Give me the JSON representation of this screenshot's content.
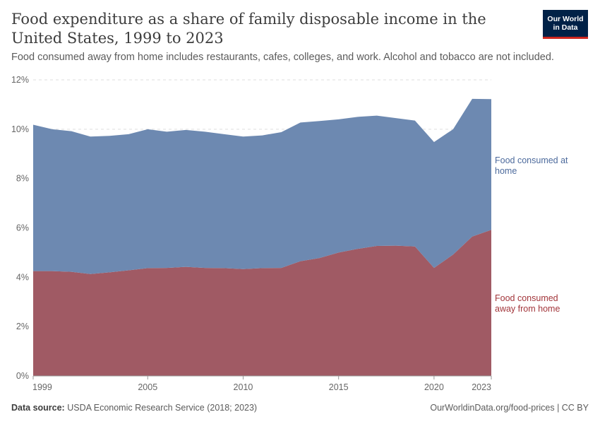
{
  "header": {
    "title": "Food expenditure as a share of family disposable income in the United States, 1999 to 2023",
    "subtitle": "Food consumed away from home includes restaurants, cafes, colleges, and work. Alcohol and tobacco are not included.",
    "logo_line1": "Our World",
    "logo_line2": "in Data"
  },
  "footer": {
    "source_label": "Data source:",
    "source_text": "USDA Economic Research Service (2018; 2023)",
    "url_text": "OurWorldinData.org/food-prices | CC BY"
  },
  "colors": {
    "at_home": "#6d89b1",
    "at_home_label": "#4c6a9c",
    "away": "#a05a64",
    "away_label": "#a2353a",
    "brand": "#002147",
    "brand_accent": "#ce261e"
  },
  "chart_data": {
    "type": "area",
    "stacked": true,
    "x": [
      1999,
      2000,
      2001,
      2002,
      2003,
      2004,
      2005,
      2006,
      2007,
      2008,
      2009,
      2010,
      2011,
      2012,
      2013,
      2014,
      2015,
      2016,
      2017,
      2018,
      2019,
      2020,
      2021,
      2022,
      2023
    ],
    "series": [
      {
        "name": "Food consumed away from home",
        "label": "Food consumed away from home",
        "color": "#a05a64",
        "values": [
          4.25,
          4.25,
          4.22,
          4.13,
          4.2,
          4.28,
          4.37,
          4.38,
          4.42,
          4.38,
          4.37,
          4.33,
          4.37,
          4.38,
          4.65,
          4.78,
          5.0,
          5.15,
          5.27,
          5.28,
          5.25,
          4.38,
          4.92,
          5.65,
          5.92
        ]
      },
      {
        "name": "Food consumed at home",
        "label": "Food consumed at home",
        "color": "#6d89b1",
        "values": [
          5.93,
          5.75,
          5.7,
          5.57,
          5.53,
          5.52,
          5.63,
          5.52,
          5.55,
          5.52,
          5.43,
          5.37,
          5.38,
          5.5,
          5.62,
          5.55,
          5.4,
          5.35,
          5.28,
          5.17,
          5.1,
          5.1,
          5.08,
          5.58,
          5.3
        ]
      }
    ],
    "x_ticks": [
      "1999",
      "2005",
      "2010",
      "2015",
      "2020",
      "2023"
    ],
    "y_ticks": [
      "0%",
      "2%",
      "4%",
      "6%",
      "8%",
      "10%",
      "12%"
    ],
    "xlim": [
      1999,
      2023
    ],
    "ylim": [
      0,
      12
    ],
    "grid": "horizontal dashed",
    "legend": "right"
  }
}
